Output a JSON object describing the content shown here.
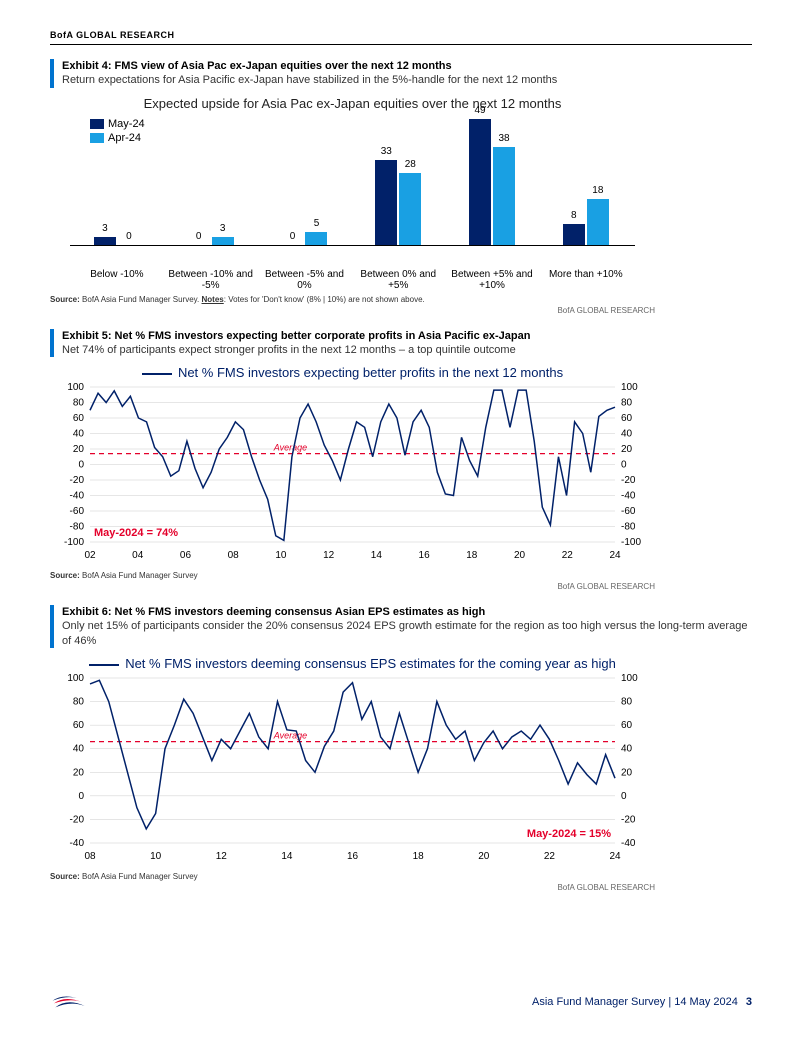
{
  "header": "BofA GLOBAL RESEARCH",
  "bofa_tag": "BofA GLOBAL RESEARCH",
  "footer": {
    "doc": "Asia Fund Manager Survey",
    "date": "14 May 2024",
    "page": "3"
  },
  "colors": {
    "brand_blue": "#012169",
    "accent_blue": "#0073cf",
    "may24": "#012169",
    "apr24": "#19a0e3",
    "avg_line": "#e4002b",
    "grid": "#cccccc"
  },
  "exhibit4": {
    "title": "Exhibit 4: FMS view of Asia Pac ex-Japan equities over the next 12 months",
    "subtitle": "Return expectations for Asia Pacific ex-Japan have stabilized in the 5%-handle for the next 12 months",
    "chart_title": "Expected upside for Asia Pac ex-Japan equities over the next 12 months",
    "legend": {
      "a": "May-24",
      "b": "Apr-24"
    },
    "categories": [
      "Below -10%",
      "Between -10% and -5%",
      "Between -5% and 0%",
      "Between 0% and +5%",
      "Between +5% and +10%",
      "More than +10%"
    ],
    "may": [
      3,
      0,
      0,
      33,
      49,
      8
    ],
    "apr": [
      0,
      3,
      5,
      28,
      38,
      18
    ],
    "ymax": 50,
    "source_label": "Source:",
    "source_text": "BofA Asia Fund Manager Survey.",
    "notes_label": "Notes",
    "notes_text": ": Votes for 'Don't know' (8% | 10%) are not shown above."
  },
  "exhibit5": {
    "title": "Exhibit 5: Net % FMS investors expecting better corporate profits in Asia Pacific ex-Japan",
    "subtitle": "Net 74% of participants expect stronger profits in the next 12 months – a top quintile outcome",
    "chart_title": "Net % FMS investors expecting better profits in the next 12 months",
    "ylim": [
      -100,
      100
    ],
    "ytick_step": 20,
    "xlabels": [
      "02",
      "04",
      "06",
      "08",
      "10",
      "12",
      "14",
      "16",
      "18",
      "20",
      "22",
      "24"
    ],
    "average_level": 14,
    "average_label": "Average",
    "callout": "May-2024 = 74%",
    "line_data": [
      70,
      92,
      80,
      95,
      75,
      88,
      60,
      55,
      22,
      10,
      -15,
      -8,
      30,
      -5,
      -30,
      -10,
      20,
      35,
      55,
      45,
      10,
      -20,
      -45,
      -92,
      -98,
      10,
      60,
      78,
      55,
      25,
      5,
      -20,
      20,
      55,
      48,
      10,
      55,
      78,
      60,
      12,
      55,
      70,
      48,
      -10,
      -38,
      -40,
      35,
      5,
      -15,
      48,
      96,
      96,
      48,
      96,
      96,
      30,
      -55,
      -78,
      10,
      -40,
      55,
      40,
      -10,
      62,
      70,
      74
    ],
    "source_label": "Source:",
    "source_text": "BofA Asia Fund Manager Survey"
  },
  "exhibit6": {
    "title": "Exhibit 6: Net % FMS investors deeming consensus Asian EPS estimates as high",
    "subtitle": "Only net 15% of participants consider the 20% consensus 2024 EPS growth estimate for the region as too high versus the long-term average of 46%",
    "chart_title": "Net % FMS investors deeming consensus EPS estimates for the coming year as high",
    "ylim": [
      -40,
      100
    ],
    "ytick_step": 20,
    "xlabels": [
      "08",
      "10",
      "12",
      "14",
      "16",
      "18",
      "20",
      "22",
      "24"
    ],
    "average_level": 46,
    "average_label": "Average",
    "callout": "May-2024 = 15%",
    "line_data": [
      95,
      98,
      80,
      50,
      20,
      -10,
      -28,
      -15,
      40,
      60,
      82,
      70,
      50,
      30,
      48,
      40,
      55,
      70,
      50,
      40,
      80,
      56,
      55,
      30,
      20,
      42,
      55,
      88,
      96,
      65,
      80,
      50,
      40,
      70,
      45,
      20,
      40,
      80,
      60,
      48,
      55,
      30,
      45,
      55,
      40,
      50,
      55,
      48,
      60,
      48,
      30,
      10,
      28,
      18,
      10,
      35,
      15
    ],
    "source_label": "Source:",
    "source_text": "BofA Asia Fund Manager Survey"
  }
}
